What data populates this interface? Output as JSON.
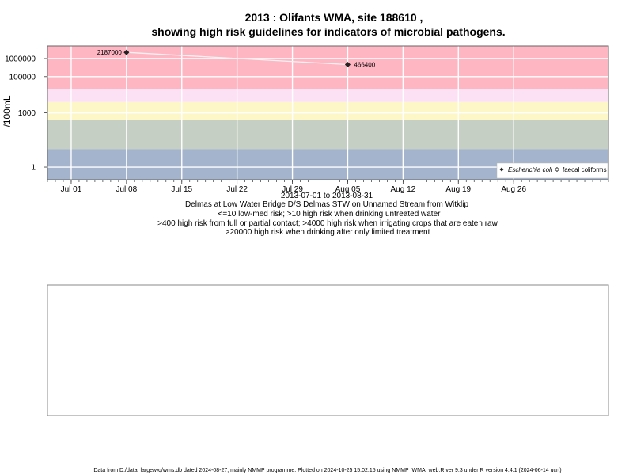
{
  "title_line1": "2013 : Olifants WMA, site 188610 ,",
  "title_line2": "showing high risk guidelines for indicators of microbial pathogens.",
  "chart_data": {
    "type": "scatter",
    "ylabel": "/100mL",
    "y_scale": "log",
    "x_range": [
      "2013-06-28",
      "2013-09-07"
    ],
    "y_range": [
      0.2,
      5000000
    ],
    "x_ticks": [
      {
        "date": "2013-07-01",
        "label": "Jul 01"
      },
      {
        "date": "2013-07-08",
        "label": "Jul 08"
      },
      {
        "date": "2013-07-15",
        "label": "Jul 15"
      },
      {
        "date": "2013-07-22",
        "label": "Jul 22"
      },
      {
        "date": "2013-07-29",
        "label": "Jul 29"
      },
      {
        "date": "2013-08-05",
        "label": "Aug 05"
      },
      {
        "date": "2013-08-12",
        "label": "Aug 12"
      },
      {
        "date": "2013-08-19",
        "label": "Aug 19"
      },
      {
        "date": "2013-08-26",
        "label": "Aug 26"
      }
    ],
    "y_ticks": [
      {
        "value": 1,
        "label": "1"
      },
      {
        "value": 1000,
        "label": "1000"
      },
      {
        "value": 100000,
        "label": "100000"
      },
      {
        "value": 1000000,
        "label": "1000000"
      }
    ],
    "bands": [
      {
        "from": 0.2,
        "to": 10,
        "color": "#a3b4cc"
      },
      {
        "from": 10,
        "to": 400,
        "color": "#c5cfc3"
      },
      {
        "from": 400,
        "to": 4000,
        "color": "#fdf7c8"
      },
      {
        "from": 4000,
        "to": 20000,
        "color": "#fce1f4"
      },
      {
        "from": 20000,
        "to": 5000000,
        "color": "#ffb6c3"
      }
    ],
    "series": [
      {
        "name": "Escherichia coli",
        "marker": "filled-diamond",
        "points": [
          {
            "date": "2013-07-08",
            "value": 2187000,
            "label": "2187000"
          },
          {
            "date": "2013-08-05",
            "value": 466400,
            "label": "466400"
          }
        ]
      },
      {
        "name": "faecal coliforms",
        "marker": "open-diamond",
        "points": []
      }
    ],
    "legend_position": "bottom-right",
    "grid": true
  },
  "date_range_text": "2013-07-01 to 2013-08-31",
  "site_text": "Delmas at Low Water Bridge D/S Delmas STW on Unnamed Stream from Witklip",
  "risk_notes": [
    "<=10 low-med risk; >10 high risk when drinking untreated water",
    ">400 high risk from full or partial contact; >4000 high risk when irrigating crops that are eaten raw",
    ">20000 high risk when drinking after only limited treatment"
  ],
  "footer": "Data from D:/data_large/wq/wms.db dated 2024-08-27, mainly NMMP programme. Plotted on 2024-10-25 15:02:15 using NMMP_WMA_web.R ver 9.3 under R version 4.4.1 (2024-06-14 ucrt)"
}
